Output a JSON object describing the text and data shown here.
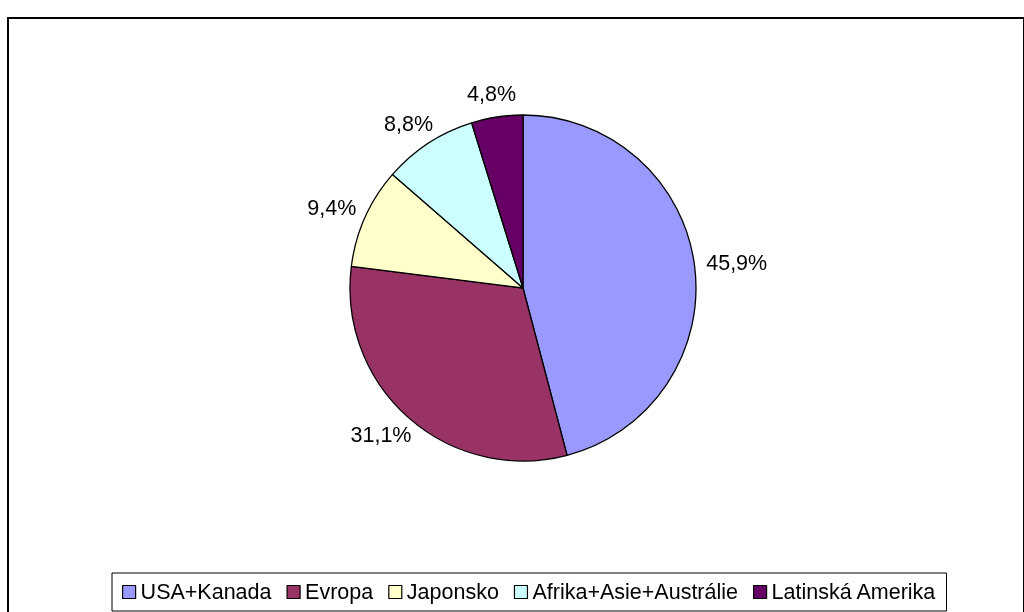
{
  "chart_data": {
    "type": "pie",
    "categories": [
      "USA+Kanada",
      "Evropa",
      "Japonsko",
      "Afrika+Asie+Austrálie",
      "Latinská Amerika"
    ],
    "values": [
      45.9,
      31.1,
      9.4,
      8.8,
      4.8
    ],
    "value_labels": [
      "45,9%",
      "31,1%",
      "9,4%",
      "8,8%",
      "4,8%"
    ],
    "colors": [
      "#9999ff",
      "#993366",
      "#ffffcc",
      "#ccffff",
      "#660066"
    ],
    "legend": "bottom"
  }
}
